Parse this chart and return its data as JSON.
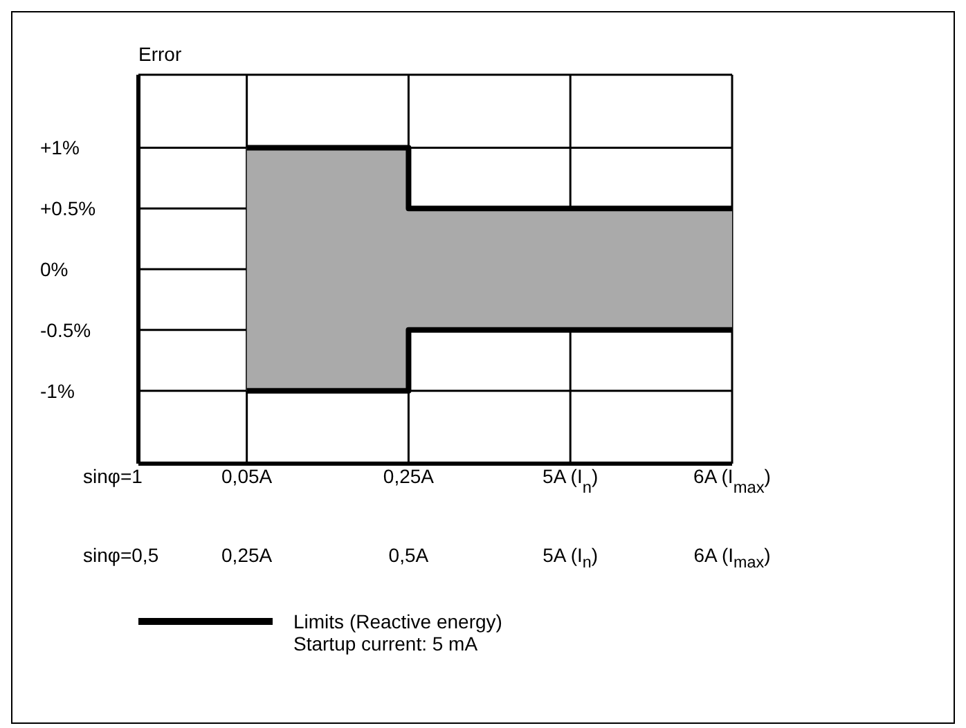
{
  "chart_data": {
    "type": "step",
    "ylabel": "Error",
    "categories": [
      "0,05A",
      "0,25A",
      "5A (I$_{n}$)",
      "6A (I$_{max}$)"
    ],
    "series": [
      {
        "name": "Limits (Reactive energy)",
        "color": "#000000",
        "values": [
          1,
          0.5,
          0.5,
          0.5
        ],
        "lower": [
          -1,
          -0.5,
          -0.5,
          -0.5
        ],
        "upper": [
          1,
          0.5,
          0.5,
          0.5
        ]
      },
      {
        "color": "#000000",
        "values": [
          -1,
          -0.5,
          -0.5,
          -0.5
        ]
      }
    ],
    "ylim": [
      -1.6,
      1.6
    ],
    "yticks": [
      {
        "value": 1,
        "label": "+1%"
      },
      {
        "value": 0.5,
        "label": "+0.5%"
      },
      {
        "value": 0,
        "label": "0%"
      },
      {
        "value": -0.5,
        "label": "-0.5%"
      },
      {
        "value": -1,
        "label": "-1%"
      }
    ],
    "grid": true,
    "legend": "bottom",
    "line_style": "solid",
    "annotations": [
      "sinφ=1",
      "sinφ=0,5",
      "0,25A",
      "0,5A",
      "5A (I$_{n}$)",
      "6A (I$_{max}$)",
      "Startup current: 5 mA"
    ]
  }
}
